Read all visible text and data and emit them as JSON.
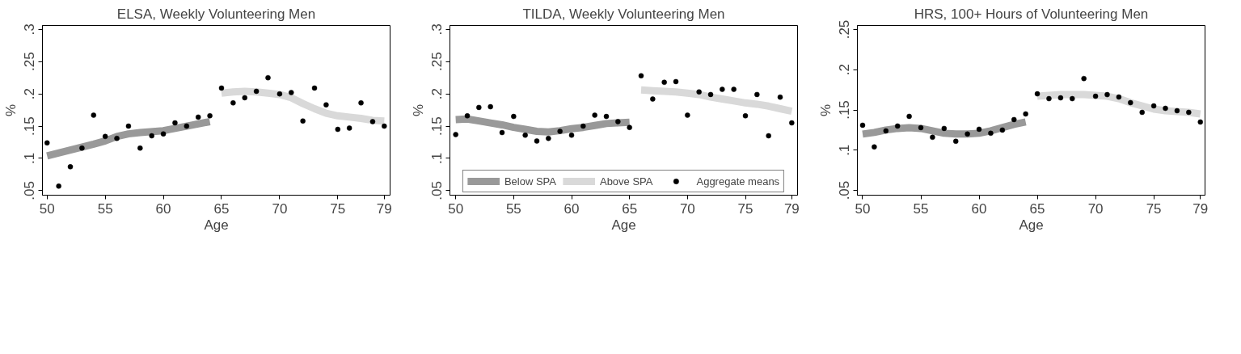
{
  "chart_data": [
    {
      "type": "line",
      "title": "ELSA, Weekly Volunteering Men",
      "xlabel": "Age",
      "ylabel": "%",
      "xlim": [
        49.6,
        79.5
      ],
      "ylim": [
        0.043,
        0.306
      ],
      "xticks": [
        50,
        55,
        60,
        65,
        70,
        75,
        79
      ],
      "yticks": [
        {
          "value": 0.05,
          "label": ".05"
        },
        {
          "value": 0.1,
          "label": ".1"
        },
        {
          "value": 0.15,
          "label": ".15"
        },
        {
          "value": 0.2,
          "label": ".2"
        },
        {
          "value": 0.25,
          "label": ".25"
        },
        {
          "value": 0.3,
          "label": ".3"
        }
      ],
      "grid": false,
      "series": [
        {
          "color": "#999999",
          "x": [
            50,
            52,
            54,
            55,
            56,
            57,
            58,
            60,
            62,
            64
          ],
          "values": [
            0.104,
            0.113,
            0.122,
            0.127,
            0.134,
            0.138,
            0.14,
            0.143,
            0.15,
            0.157
          ]
        },
        {
          "color": "#d9d9d9",
          "x": [
            65,
            66,
            67,
            68,
            69,
            70,
            71,
            72,
            73,
            74,
            75,
            76,
            77,
            78,
            79
          ],
          "values": [
            0.201,
            0.203,
            0.204,
            0.203,
            0.201,
            0.199,
            0.194,
            0.185,
            0.177,
            0.17,
            0.166,
            0.164,
            0.162,
            0.159,
            0.158
          ]
        },
        {
          "type": "scatter",
          "marker": "circle",
          "color": "#000000",
          "x": [
            50,
            51,
            52,
            53,
            54,
            55,
            56,
            57,
            58,
            59,
            60,
            61,
            62,
            63,
            64,
            65,
            66,
            67,
            68,
            69,
            70,
            71,
            72,
            73,
            74,
            75,
            76,
            77,
            78,
            79
          ],
          "values": [
            0.124,
            0.057,
            0.087,
            0.116,
            0.167,
            0.134,
            0.131,
            0.15,
            0.116,
            0.135,
            0.138,
            0.155,
            0.15,
            0.164,
            0.166,
            0.209,
            0.186,
            0.194,
            0.204,
            0.225,
            0.2,
            0.202,
            0.158,
            0.209,
            0.183,
            0.145,
            0.147,
            0.186,
            0.157,
            0.15
          ]
        }
      ]
    },
    {
      "type": "line",
      "title": "TILDA, Weekly Volunteering Men",
      "xlabel": "Age",
      "ylabel": "%",
      "xlim": [
        49.5,
        79.5
      ],
      "ylim": [
        0.043,
        0.306
      ],
      "xticks": [
        50,
        55,
        60,
        65,
        70,
        75,
        79
      ],
      "yticks": [
        {
          "value": 0.05,
          "label": ".05"
        },
        {
          "value": 0.1,
          "label": ".1"
        },
        {
          "value": 0.15,
          "label": ".15"
        },
        {
          "value": 0.2,
          "label": ".2"
        },
        {
          "value": 0.25,
          "label": ".25"
        },
        {
          "value": 0.3,
          "label": ".3"
        }
      ],
      "grid": false,
      "legend": "bottom",
      "series": [
        {
          "name": "Below SPA",
          "color": "#999999",
          "x": [
            50,
            51,
            52,
            53,
            54,
            55,
            56,
            57,
            58,
            59,
            60,
            61,
            62,
            63,
            64,
            65
          ],
          "values": [
            0.16,
            0.161,
            0.158,
            0.155,
            0.152,
            0.148,
            0.145,
            0.142,
            0.141,
            0.143,
            0.146,
            0.148,
            0.151,
            0.154,
            0.155,
            0.156
          ]
        },
        {
          "name": "Above SPA",
          "color": "#d9d9d9",
          "x": [
            66,
            67,
            68,
            69,
            70,
            71,
            72,
            73,
            74,
            75,
            76,
            77,
            78,
            79
          ],
          "values": [
            0.206,
            0.205,
            0.204,
            0.203,
            0.201,
            0.199,
            0.195,
            0.192,
            0.189,
            0.186,
            0.184,
            0.181,
            0.177,
            0.173
          ]
        },
        {
          "name": "Aggregate means",
          "type": "scatter",
          "marker": "circle",
          "color": "#000000",
          "x": [
            50,
            51,
            52,
            53,
            54,
            55,
            56,
            57,
            58,
            59,
            60,
            61,
            62,
            63,
            64,
            65,
            66,
            67,
            68,
            69,
            70,
            71,
            72,
            73,
            74,
            75,
            76,
            77,
            78,
            79
          ],
          "values": [
            0.137,
            0.166,
            0.179,
            0.18,
            0.14,
            0.165,
            0.136,
            0.127,
            0.131,
            0.142,
            0.136,
            0.15,
            0.167,
            0.165,
            0.157,
            0.148,
            0.228,
            0.192,
            0.218,
            0.219,
            0.167,
            0.203,
            0.199,
            0.207,
            0.207,
            0.166,
            0.199,
            0.135,
            0.195,
            0.155
          ]
        }
      ]
    },
    {
      "type": "line",
      "title": "HRS, 100+ Hours of Volunteering Men",
      "xlabel": "Age",
      "ylabel": "%",
      "xlim": [
        49.55,
        79.4
      ],
      "ylim": [
        0.044,
        0.255
      ],
      "xticks": [
        50,
        55,
        60,
        65,
        70,
        75,
        79
      ],
      "yticks": [
        {
          "value": 0.05,
          "label": ".05"
        },
        {
          "value": 0.1,
          "label": ".1"
        },
        {
          "value": 0.15,
          "label": ".15"
        },
        {
          "value": 0.2,
          "label": ".2"
        },
        {
          "value": 0.25,
          "label": ".25"
        }
      ],
      "grid": false,
      "series": [
        {
          "color": "#999999",
          "x": [
            50,
            51,
            52,
            53,
            54,
            55,
            56,
            57,
            58,
            59,
            60,
            61,
            62,
            63,
            64
          ],
          "values": [
            0.12,
            0.122,
            0.125,
            0.127,
            0.128,
            0.127,
            0.124,
            0.121,
            0.12,
            0.12,
            0.121,
            0.124,
            0.128,
            0.132,
            0.135
          ]
        },
        {
          "color": "#d9d9d9",
          "x": [
            65,
            66,
            67,
            68,
            69,
            70,
            71,
            72,
            73,
            74,
            75,
            76,
            77,
            78,
            79
          ],
          "values": [
            0.167,
            0.168,
            0.169,
            0.169,
            0.169,
            0.168,
            0.167,
            0.164,
            0.159,
            0.155,
            0.151,
            0.149,
            0.148,
            0.147,
            0.145
          ]
        },
        {
          "type": "scatter",
          "marker": "circle",
          "color": "#000000",
          "x": [
            50,
            51,
            52,
            53,
            54,
            55,
            56,
            57,
            58,
            59,
            60,
            61,
            62,
            63,
            64,
            65,
            66,
            67,
            68,
            69,
            70,
            71,
            72,
            73,
            74,
            75,
            76,
            77,
            78,
            79
          ],
          "values": [
            0.131,
            0.104,
            0.124,
            0.13,
            0.142,
            0.128,
            0.116,
            0.127,
            0.111,
            0.12,
            0.126,
            0.121,
            0.125,
            0.138,
            0.145,
            0.17,
            0.164,
            0.165,
            0.164,
            0.189,
            0.167,
            0.169,
            0.166,
            0.159,
            0.147,
            0.155,
            0.152,
            0.149,
            0.147,
            0.135
          ]
        }
      ]
    }
  ]
}
